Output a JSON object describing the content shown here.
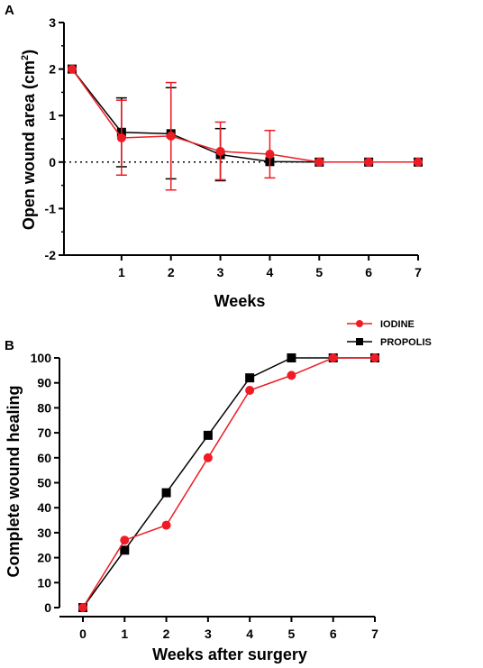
{
  "colors": {
    "iodine": "#ee1c24",
    "propolis": "#000000",
    "axis": "#000000"
  },
  "legend": {
    "items": [
      {
        "label": "IODINE",
        "color": "#ee1c24",
        "marker": "circle"
      },
      {
        "label": "PROPOLIS",
        "color": "#000000",
        "marker": "square"
      }
    ]
  },
  "chart_data": [
    {
      "panel": "A",
      "type": "line",
      "title": "",
      "xlabel": "Weeks",
      "ylabel": "Open wound area (cm",
      "ylabel_sup": "2",
      "ylabel_end": ")",
      "xlim": [
        0,
        7
      ],
      "ylim": [
        -2,
        3
      ],
      "x_ticks": [
        1,
        2,
        3,
        4,
        5,
        6,
        7
      ],
      "y_ticks": [
        -2,
        -1,
        0,
        1,
        2,
        3
      ],
      "reference_line": {
        "y": 0,
        "style": "dotted"
      },
      "x": [
        0,
        1,
        2,
        3,
        4,
        5,
        6,
        7
      ],
      "series": [
        {
          "name": "IODINE",
          "marker": "circle",
          "color": "#ee1c24",
          "values": [
            2.0,
            0.52,
            0.56,
            0.23,
            0.17,
            0,
            0,
            0
          ],
          "err_low": [
            2.0,
            -0.28,
            -0.6,
            -0.38,
            -0.34,
            0,
            0,
            0
          ],
          "err_high": [
            2.0,
            1.33,
            1.71,
            0.86,
            0.68,
            0,
            0,
            0
          ]
        },
        {
          "name": "PROPOLIS",
          "marker": "square",
          "color": "#000000",
          "values": [
            2.0,
            0.64,
            0.61,
            0.16,
            0.01,
            0,
            0,
            0
          ],
          "err_low": [
            2.0,
            -0.1,
            -0.36,
            -0.4,
            0,
            0,
            0,
            0
          ],
          "err_high": [
            2.0,
            1.38,
            1.6,
            0.72,
            0.02,
            0,
            0,
            0
          ]
        }
      ]
    },
    {
      "panel": "B",
      "type": "line",
      "title": "",
      "xlabel": "Weeks after surgery",
      "ylabel": "Complete wound healing",
      "xlim": [
        0,
        7
      ],
      "ylim": [
        0,
        100
      ],
      "x_ticks": [
        0,
        1,
        2,
        3,
        4,
        5,
        6,
        7
      ],
      "y_ticks": [
        0,
        10,
        20,
        30,
        40,
        50,
        60,
        70,
        80,
        90,
        100
      ],
      "x": [
        0,
        1,
        2,
        3,
        4,
        5,
        6,
        7
      ],
      "series": [
        {
          "name": "IODINE",
          "marker": "circle",
          "color": "#ee1c24",
          "values": [
            0,
            27,
            33,
            60,
            87,
            93,
            100,
            100
          ]
        },
        {
          "name": "PROPOLIS",
          "marker": "square",
          "color": "#000000",
          "values": [
            0,
            23,
            46,
            69,
            92,
            100,
            100,
            100
          ]
        }
      ]
    }
  ]
}
